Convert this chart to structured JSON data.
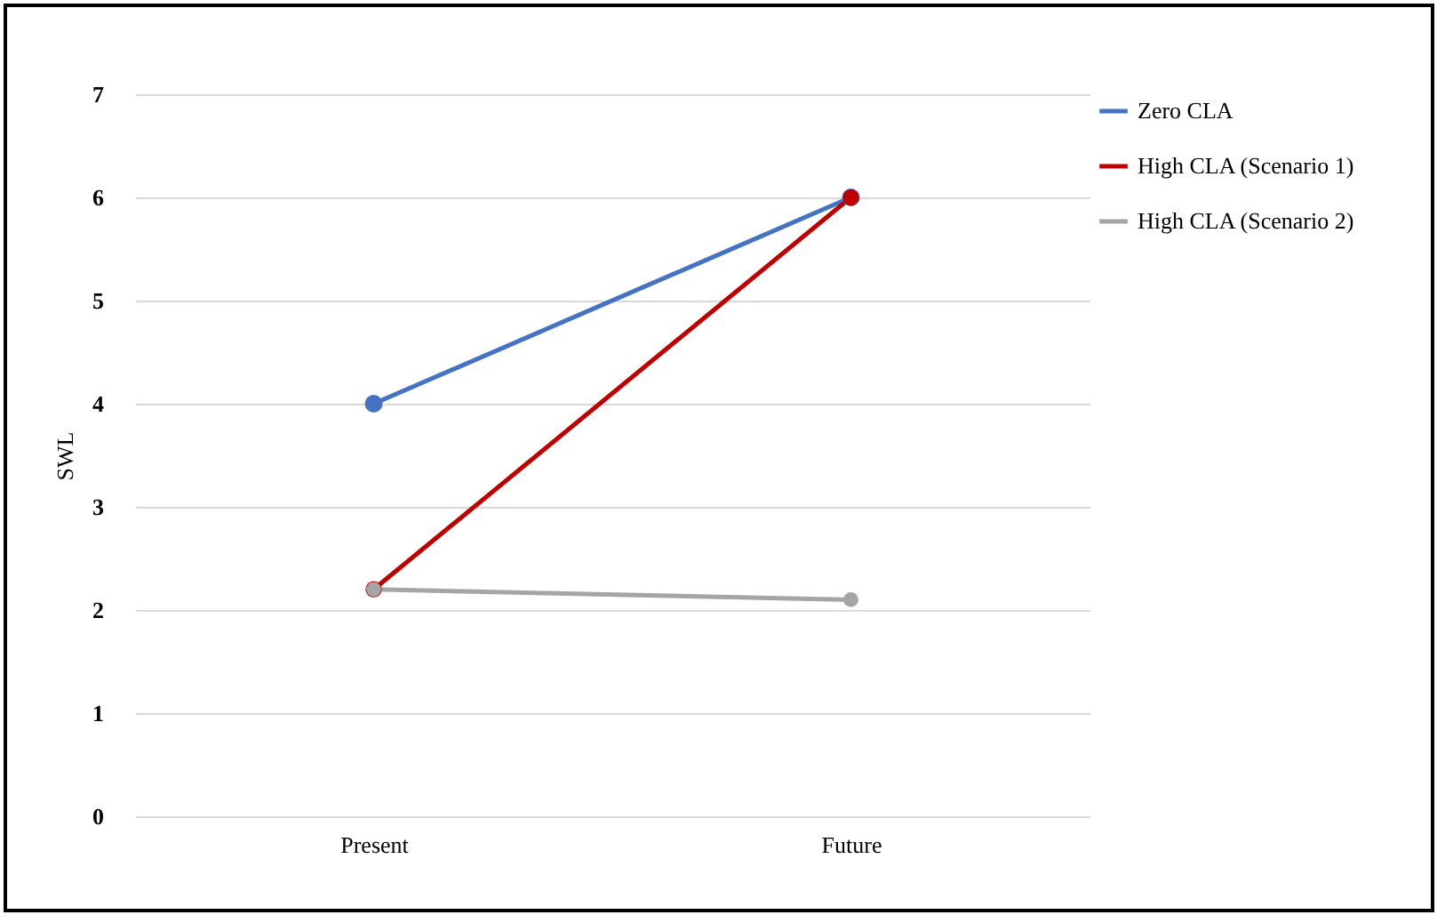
{
  "chart_data": {
    "type": "line",
    "ylabel": "SWL",
    "categories": [
      "Present",
      "Future"
    ],
    "series": [
      {
        "name": "Zero CLA",
        "color": "#4472c4",
        "values": [
          4.0,
          6.0
        ]
      },
      {
        "name": "High CLA (Scenario 1)",
        "color": "#c00000",
        "values": [
          2.2,
          6.0
        ]
      },
      {
        "name": "High CLA (Scenario 2)",
        "color": "#a5a5a5",
        "values": [
          2.2,
          2.1
        ]
      }
    ],
    "ylim": [
      0,
      7
    ],
    "yticks": [
      0,
      1,
      2,
      3,
      4,
      5,
      6,
      7
    ],
    "grid": "y",
    "legend": "right",
    "marker": "circle",
    "line_style": "solid"
  }
}
